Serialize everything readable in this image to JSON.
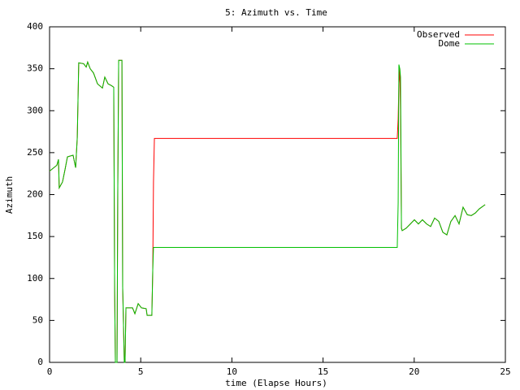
{
  "chart_data": {
    "type": "line",
    "title": "5: Azimuth vs. Time",
    "x_label": "time (Elapse Hours)",
    "y_label": "Azimuth",
    "legend": "top-right",
    "xlim": [
      0,
      25
    ],
    "ylim": [
      0,
      400
    ],
    "xticks": [
      0,
      5,
      10,
      15,
      20,
      25
    ],
    "yticks": [
      0,
      50,
      100,
      150,
      200,
      250,
      300,
      350,
      400
    ],
    "x": [
      0,
      0.4,
      0.49,
      0.53,
      0.71,
      0.85,
      0.98,
      1.29,
      1.43,
      1.52,
      1.6,
      1.87,
      2.01,
      2.09,
      2.23,
      2.41,
      2.63,
      2.9,
      3.03,
      3.21,
      3.39,
      3.52,
      3.57,
      3.61,
      3.7,
      3.74,
      3.79,
      3.97,
      4.01,
      4.1,
      4.14,
      4.19,
      4.55,
      4.68,
      4.86,
      5.04,
      5.3,
      5.35,
      5.61,
      5.66,
      5.7,
      5.75,
      19.07,
      19.12,
      19.16,
      19.21,
      19.25,
      19.3,
      19.34,
      19.56,
      19.79,
      20.01,
      20.23,
      20.45,
      20.68,
      20.9,
      21.12,
      21.35,
      21.57,
      21.79,
      22.01,
      22.24,
      22.46,
      22.68,
      22.91,
      23.13,
      23.35,
      23.57,
      23.89
    ],
    "series": [
      {
        "name": "Observed",
        "color": "#ff0000",
        "values": [
          228,
          235,
          242,
          208,
          215,
          230,
          245,
          247,
          232,
          268,
          357,
          356,
          352,
          358,
          350,
          345,
          332,
          327,
          340,
          332,
          330,
          328,
          85,
          0,
          0,
          200,
          360,
          360,
          90,
          0,
          0,
          65,
          65,
          58,
          70,
          65,
          64,
          56,
          56,
          110,
          215,
          267,
          267,
          290,
          332,
          350,
          300,
          160,
          157,
          160,
          165,
          170,
          165,
          170,
          165,
          162,
          172,
          168,
          155,
          152,
          168,
          175,
          165,
          185,
          176,
          175,
          178,
          183,
          188
        ]
      },
      {
        "name": "Dome",
        "color": "#00c000",
        "values": [
          228,
          235,
          242,
          208,
          215,
          230,
          245,
          247,
          232,
          268,
          357,
          356,
          352,
          358,
          350,
          345,
          332,
          327,
          340,
          332,
          330,
          328,
          85,
          0,
          0,
          200,
          360,
          360,
          90,
          0,
          0,
          65,
          65,
          58,
          70,
          65,
          64,
          56,
          56,
          110,
          137,
          137,
          137,
          190,
          355,
          350,
          340,
          160,
          157,
          160,
          165,
          170,
          165,
          170,
          165,
          162,
          172,
          168,
          155,
          152,
          168,
          175,
          165,
          185,
          176,
          175,
          178,
          183,
          188
        ]
      }
    ]
  }
}
